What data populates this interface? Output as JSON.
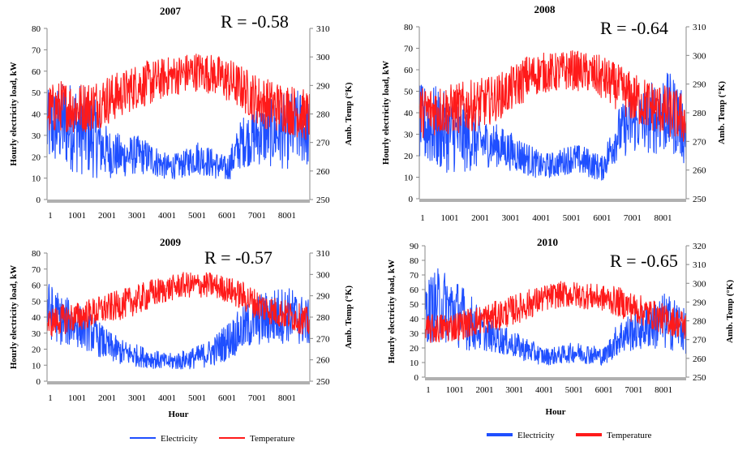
{
  "chart_data": [
    {
      "type": "line",
      "title": "2007",
      "annotation": "R = -0.58",
      "xlabel": "",
      "ylabel": "Hourly electricity load, kW",
      "y2label": "Amb. Temp (°K)",
      "xticks": [
        "1",
        "1001",
        "2001",
        "3001",
        "4001",
        "5001",
        "6001",
        "7001",
        "8001"
      ],
      "xlim": [
        1,
        8760
      ],
      "ylim": [
        0,
        80
      ],
      "yticks": [
        0,
        10,
        20,
        30,
        40,
        50,
        60,
        70,
        80
      ],
      "y2lim": [
        250,
        310
      ],
      "y2ticks": [
        250,
        260,
        270,
        280,
        290,
        300,
        310
      ],
      "series": [
        {
          "name": "Electricity",
          "axis": "left",
          "color": "#1f4fff",
          "x": [
            1,
            500,
            1000,
            1500,
            2000,
            2500,
            3000,
            3500,
            4000,
            4500,
            5000,
            5500,
            6000,
            6500,
            7000,
            7500,
            8000,
            8500,
            8760
          ],
          "values": [
            33,
            35,
            34,
            30,
            22,
            20,
            21,
            19,
            15,
            16,
            20,
            17,
            14,
            27,
            30,
            31,
            32,
            34,
            30
          ],
          "spread": [
            18,
            20,
            22,
            20,
            12,
            10,
            9,
            8,
            6,
            6,
            8,
            7,
            6,
            12,
            14,
            16,
            18,
            18,
            16
          ]
        },
        {
          "name": "Temperature",
          "axis": "right",
          "color": "#ff1a1a",
          "x": [
            1,
            500,
            1000,
            1500,
            2000,
            2500,
            3000,
            3500,
            4000,
            4500,
            5000,
            5500,
            6000,
            6500,
            7000,
            7500,
            8000,
            8500,
            8760
          ],
          "values": [
            281,
            283,
            282,
            283,
            285,
            287,
            290,
            291,
            293,
            294,
            295,
            294,
            292,
            289,
            285,
            283,
            282,
            280,
            279
          ],
          "spread": [
            9,
            9,
            9,
            9,
            9,
            8,
            8,
            8,
            7,
            7,
            7,
            7,
            8,
            8,
            9,
            9,
            9,
            9,
            9
          ]
        }
      ]
    },
    {
      "type": "line",
      "title": "2008",
      "annotation": "R = -0.64",
      "xlabel": "",
      "ylabel": "Hourly electricity load, kW",
      "y2label": "Amb. Temp (°K)",
      "xticks": [
        "1",
        "1001",
        "2001",
        "3001",
        "4001",
        "5001",
        "6001",
        "7001",
        "8001"
      ],
      "xlim": [
        1,
        8760
      ],
      "ylim": [
        0,
        80
      ],
      "yticks": [
        0,
        10,
        20,
        30,
        40,
        50,
        60,
        70,
        80
      ],
      "y2lim": [
        250,
        310
      ],
      "y2ticks": [
        250,
        260,
        270,
        280,
        290,
        300,
        310
      ],
      "series": [
        {
          "name": "Electricity",
          "axis": "left",
          "color": "#1f4fff",
          "x": [
            1,
            500,
            1000,
            1500,
            2000,
            2500,
            3000,
            3500,
            4000,
            4500,
            5000,
            5500,
            6000,
            6500,
            7000,
            7500,
            8000,
            8500,
            8760
          ],
          "values": [
            35,
            33,
            30,
            28,
            26,
            25,
            22,
            19,
            15,
            16,
            19,
            17,
            14,
            30,
            35,
            37,
            40,
            38,
            28
          ],
          "spread": [
            18,
            20,
            18,
            16,
            12,
            10,
            9,
            8,
            6,
            6,
            7,
            7,
            6,
            12,
            14,
            16,
            20,
            18,
            14
          ]
        },
        {
          "name": "Temperature",
          "axis": "right",
          "color": "#ff1a1a",
          "x": [
            1,
            500,
            1000,
            1500,
            2000,
            2500,
            3000,
            3500,
            4000,
            4500,
            5000,
            5500,
            6000,
            6500,
            7000,
            7500,
            8000,
            8500,
            8760
          ],
          "values": [
            280,
            281,
            281,
            282,
            283,
            285,
            288,
            292,
            294,
            294,
            295,
            294,
            292,
            289,
            285,
            283,
            281,
            279,
            277
          ],
          "spread": [
            9,
            9,
            9,
            9,
            9,
            8,
            8,
            8,
            7,
            7,
            7,
            7,
            8,
            8,
            9,
            9,
            9,
            9,
            9
          ]
        }
      ]
    },
    {
      "type": "line",
      "title": "2009",
      "annotation": "R = -0.57",
      "xlabel": "Hour",
      "ylabel": "Hourly electricity load, kW",
      "y2label": "Amb. Temp (°K)",
      "xticks": [
        "1",
        "1001",
        "2001",
        "3001",
        "4001",
        "5001",
        "6001",
        "7001",
        "8001"
      ],
      "xlim": [
        1,
        8760
      ],
      "ylim": [
        0,
        80
      ],
      "yticks": [
        0,
        10,
        20,
        30,
        40,
        50,
        60,
        70,
        80
      ],
      "y2lim": [
        250,
        310
      ],
      "y2ticks": [
        250,
        260,
        270,
        280,
        290,
        300,
        310
      ],
      "series": [
        {
          "name": "Electricity",
          "axis": "left",
          "color": "#1f4fff",
          "x": [
            1,
            500,
            1000,
            1500,
            2000,
            2500,
            3000,
            3500,
            4000,
            4500,
            5000,
            5500,
            6000,
            6500,
            7000,
            7500,
            8000,
            8500,
            8760
          ],
          "values": [
            45,
            38,
            35,
            30,
            22,
            18,
            16,
            14,
            12,
            13,
            15,
            18,
            25,
            32,
            38,
            40,
            42,
            38,
            36
          ],
          "spread": [
            18,
            16,
            14,
            12,
            10,
            8,
            7,
            6,
            5,
            6,
            7,
            9,
            12,
            14,
            16,
            18,
            18,
            16,
            14
          ]
        },
        {
          "name": "Temperature",
          "axis": "right",
          "color": "#ff1a1a",
          "x": [
            1,
            500,
            1000,
            1500,
            2000,
            2500,
            3000,
            3500,
            4000,
            4500,
            5000,
            5500,
            6000,
            6500,
            7000,
            7500,
            8000,
            8500,
            8760
          ],
          "values": [
            277,
            279,
            280,
            282,
            284,
            286,
            288,
            291,
            293,
            295,
            295,
            295,
            293,
            290,
            286,
            283,
            281,
            279,
            277
          ],
          "spread": [
            7,
            7,
            7,
            7,
            7,
            7,
            7,
            7,
            6,
            6,
            6,
            6,
            6,
            7,
            7,
            7,
            7,
            7,
            7
          ]
        }
      ]
    },
    {
      "type": "line",
      "title": "2010",
      "annotation": "R = -0.65",
      "xlabel": "Hour",
      "ylabel": "Hourly electricity load, kW",
      "y2label": "Amb. Temp (°K)",
      "xticks": [
        "1",
        "1001",
        "2001",
        "3001",
        "4001",
        "5001",
        "6001",
        "7001",
        "8001"
      ],
      "xlim": [
        1,
        8760
      ],
      "ylim": [
        0,
        90
      ],
      "yticks": [
        0,
        10,
        20,
        30,
        40,
        50,
        60,
        70,
        80,
        90
      ],
      "y2lim": [
        250,
        320
      ],
      "y2ticks": [
        250,
        260,
        270,
        280,
        290,
        300,
        310,
        320
      ],
      "series": [
        {
          "name": "Electricity",
          "axis": "left",
          "color": "#1f4fff",
          "x": [
            1,
            500,
            1000,
            1500,
            2000,
            2500,
            3000,
            3500,
            4000,
            4500,
            5000,
            5500,
            6000,
            6500,
            7000,
            7500,
            8000,
            8500,
            8760
          ],
          "values": [
            45,
            50,
            45,
            38,
            30,
            26,
            22,
            18,
            14,
            15,
            17,
            16,
            14,
            27,
            32,
            35,
            38,
            36,
            30
          ],
          "spread": [
            22,
            26,
            24,
            20,
            12,
            10,
            9,
            8,
            6,
            6,
            7,
            7,
            6,
            12,
            14,
            16,
            20,
            18,
            14
          ]
        },
        {
          "name": "Temperature",
          "axis": "right",
          "color": "#ff1a1a",
          "x": [
            1,
            500,
            1000,
            1500,
            2000,
            2500,
            3000,
            3500,
            4000,
            4500,
            5000,
            5500,
            6000,
            6500,
            7000,
            7500,
            8000,
            8500,
            8760
          ],
          "values": [
            275,
            276,
            277,
            279,
            281,
            283,
            286,
            289,
            292,
            294,
            294,
            293,
            292,
            290,
            287,
            284,
            281,
            279,
            277
          ],
          "spread": [
            8,
            8,
            8,
            8,
            8,
            8,
            8,
            8,
            7,
            7,
            7,
            7,
            7,
            8,
            8,
            8,
            8,
            8,
            8
          ]
        }
      ]
    }
  ],
  "legends": [
    {
      "items": [
        {
          "label": "Electricity",
          "color": "#1f4fff"
        },
        {
          "label": "Temperature",
          "color": "#ff1a1a"
        }
      ]
    },
    {
      "items": [
        {
          "label": "Electricity",
          "color": "#1f4fff"
        },
        {
          "label": "Temperature",
          "color": "#ff1a1a"
        }
      ]
    }
  ]
}
